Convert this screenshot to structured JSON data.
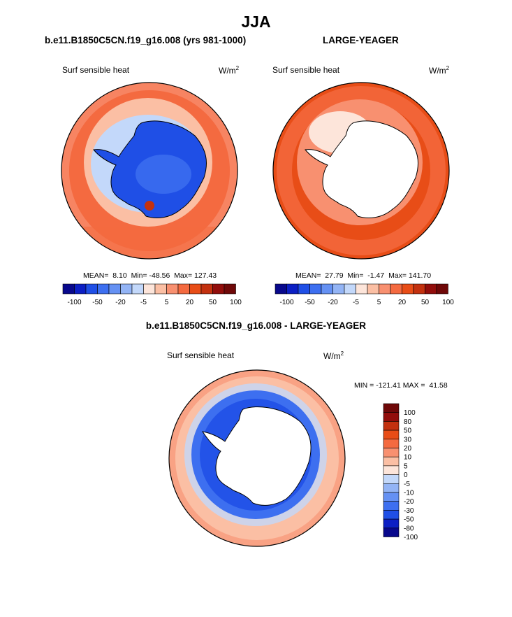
{
  "title": "JJA",
  "panel_left": {
    "run_title": "b.e11.B1850C5CN.f19_g16.008 (yrs 981-1000)",
    "variable": "Surf sensible heat",
    "units_base": "W/m",
    "units_exp": "2",
    "stats": "MEAN=  8.10  Min= -48.56  Max= 127.43"
  },
  "panel_right": {
    "run_title": "LARGE-YEAGER",
    "variable": "Surf sensible heat",
    "units_base": "W/m",
    "units_exp": "2",
    "stats": "MEAN=  27.79  Min=  -1.47  Max= 141.70"
  },
  "panel_diff": {
    "run_title": "b.e11.B1850C5CN.f19_g16.008 - LARGE-YEAGER",
    "variable": "Surf sensible heat",
    "units_base": "W/m",
    "units_exp": "2",
    "stats": "MIN = -121.41 MAX =  41.58"
  },
  "colorbar_horizontal": {
    "colors": [
      "#08088c",
      "#0c1fc4",
      "#1f4fe6",
      "#3d6ff0",
      "#6591f3",
      "#93b4f5",
      "#c3d8fa",
      "#fde5da",
      "#fbbfa4",
      "#f89070",
      "#f46a40",
      "#e84d17",
      "#c3310f",
      "#920d0b",
      "#6f0808"
    ],
    "tick_labels": [
      "-100",
      "-50",
      "-20",
      "-5",
      "5",
      "20",
      "50",
      "100"
    ]
  },
  "colorbar_vertical": {
    "colors": [
      "#08088c",
      "#0c1fc4",
      "#1f4fe6",
      "#3d6ff0",
      "#6591f3",
      "#93b4f5",
      "#c3d8fa",
      "#fde5da",
      "#fbbfa4",
      "#f89070",
      "#f46a40",
      "#e84d17",
      "#c3310f",
      "#920d0b",
      "#6f0808"
    ],
    "tick_labels": [
      "100",
      "80",
      "50",
      "30",
      "20",
      "10",
      "5",
      "0",
      "-5",
      "-10",
      "-20",
      "-30",
      "-50",
      "-80",
      "-100"
    ]
  }
}
